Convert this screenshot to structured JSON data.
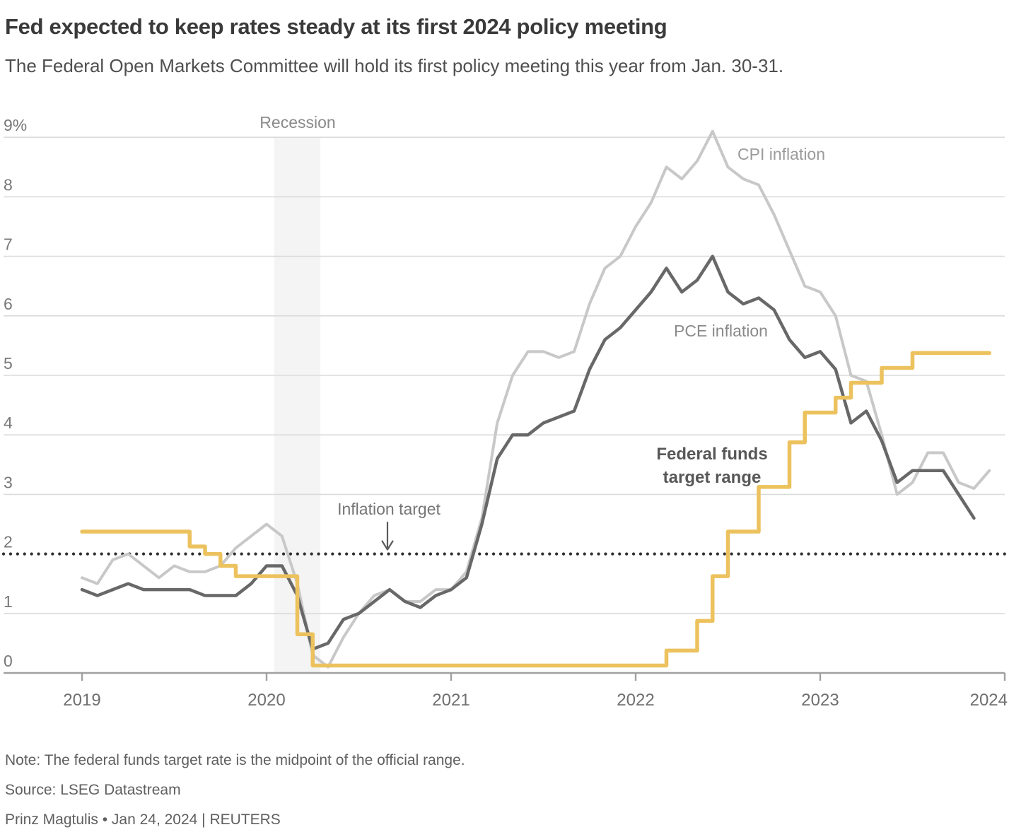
{
  "header": {
    "title": "Fed expected to keep rates steady at its first 2024 policy meeting",
    "subtitle": "The Federal Open Markets Committee will hold its first policy meeting this year from Jan. 30-31."
  },
  "footer": {
    "note": "Note: The federal funds target rate is the midpoint of the official range.",
    "source": "Source: LSEG Datastream",
    "byline": "Prinz Magtulis • Jan 24, 2024 | REUTERS"
  },
  "annotations": {
    "recession_label": "Recession",
    "cpi_label": "CPI inflation",
    "pce_label": "PCE inflation",
    "fed_label_line1": "Federal funds",
    "fed_label_line2": "target range",
    "inflation_target_label": "Inflation target"
  },
  "colors": {
    "cpi_line": "#c8c8c8",
    "pce_line": "#686868",
    "fed_line": "#ecc25e",
    "gridline": "#dbdbdb",
    "axis": "#a0a0a0",
    "recession_band": "#f4f4f4",
    "target_dotted": "#2e2e2e",
    "tick_label": "#6f6f6f",
    "y_label": "#787878"
  },
  "chart_data": {
    "type": "line",
    "title": "Fed expected to keep rates steady at its first 2024 policy meeting",
    "x_start": "2019-01",
    "x_end_inflation": "2023-12",
    "x_end_pce": "2023-11",
    "frequency": "monthly",
    "ylim": [
      0,
      9
    ],
    "y_unit": "%",
    "grid": "horizontal",
    "legend_position": "inline-annotations",
    "y_ticks": [
      {
        "value": 0,
        "label": "0"
      },
      {
        "value": 1,
        "label": "1"
      },
      {
        "value": 2,
        "label": "2"
      },
      {
        "value": 3,
        "label": "3"
      },
      {
        "value": 4,
        "label": "4"
      },
      {
        "value": 5,
        "label": "5"
      },
      {
        "value": 6,
        "label": "6"
      },
      {
        "value": 7,
        "label": "7"
      },
      {
        "value": 8,
        "label": "8"
      },
      {
        "value": 9,
        "label": "9%"
      }
    ],
    "x_ticks": [
      {
        "month_index": 0,
        "label": "2019"
      },
      {
        "month_index": 12,
        "label": "2020"
      },
      {
        "month_index": 24,
        "label": "2021"
      },
      {
        "month_index": 36,
        "label": "2022"
      },
      {
        "month_index": 48,
        "label": "2023"
      },
      {
        "month_index": 60,
        "label": "2024"
      }
    ],
    "inflation_target": {
      "label": "Inflation target",
      "value": 2
    },
    "recession": {
      "label": "Recession",
      "start_month_index": 12.5,
      "end_month_index": 15.5,
      "period": "Feb 2020 - Apr 2020"
    },
    "series": [
      {
        "name": "CPI inflation",
        "style": "line",
        "values": [
          1.6,
          1.5,
          1.9,
          2.0,
          1.8,
          1.6,
          1.8,
          1.7,
          1.7,
          1.8,
          2.1,
          2.3,
          2.5,
          2.3,
          1.5,
          0.3,
          0.1,
          0.6,
          1.0,
          1.3,
          1.4,
          1.2,
          1.2,
          1.4,
          1.4,
          1.7,
          2.6,
          4.2,
          5.0,
          5.4,
          5.4,
          5.3,
          5.4,
          6.2,
          6.8,
          7.0,
          7.5,
          7.9,
          8.5,
          8.3,
          8.6,
          9.1,
          8.5,
          8.3,
          8.2,
          7.7,
          7.1,
          6.5,
          6.4,
          6.0,
          5.0,
          4.9,
          4.0,
          3.0,
          3.2,
          3.7,
          3.7,
          3.2,
          3.1,
          3.4
        ]
      },
      {
        "name": "PCE inflation",
        "style": "line",
        "values": [
          1.4,
          1.3,
          1.4,
          1.5,
          1.4,
          1.4,
          1.4,
          1.4,
          1.3,
          1.3,
          1.3,
          1.5,
          1.8,
          1.8,
          1.3,
          0.4,
          0.5,
          0.9,
          1.0,
          1.2,
          1.4,
          1.2,
          1.1,
          1.3,
          1.4,
          1.6,
          2.5,
          3.6,
          4.0,
          4.0,
          4.2,
          4.3,
          4.4,
          5.1,
          5.6,
          5.8,
          6.1,
          6.4,
          6.8,
          6.4,
          6.6,
          7.0,
          6.4,
          6.2,
          6.3,
          6.1,
          5.6,
          5.3,
          5.4,
          5.1,
          4.2,
          4.4,
          3.9,
          3.2,
          3.4,
          3.4,
          3.4,
          3.0,
          2.6
        ]
      },
      {
        "name": "Federal funds target range",
        "style": "step",
        "values": [
          2.375,
          2.375,
          2.375,
          2.375,
          2.375,
          2.375,
          2.375,
          2.125,
          2.0,
          1.8,
          1.625,
          1.625,
          1.625,
          1.625,
          0.65,
          0.125,
          0.125,
          0.125,
          0.125,
          0.125,
          0.125,
          0.125,
          0.125,
          0.125,
          0.125,
          0.125,
          0.125,
          0.125,
          0.125,
          0.125,
          0.125,
          0.125,
          0.125,
          0.125,
          0.125,
          0.125,
          0.125,
          0.125,
          0.375,
          0.375,
          0.875,
          1.625,
          2.375,
          2.375,
          3.125,
          3.125,
          3.875,
          4.375,
          4.375,
          4.625,
          4.875,
          4.875,
          5.125,
          5.125,
          5.375,
          5.375,
          5.375,
          5.375,
          5.375,
          5.375
        ]
      }
    ]
  }
}
